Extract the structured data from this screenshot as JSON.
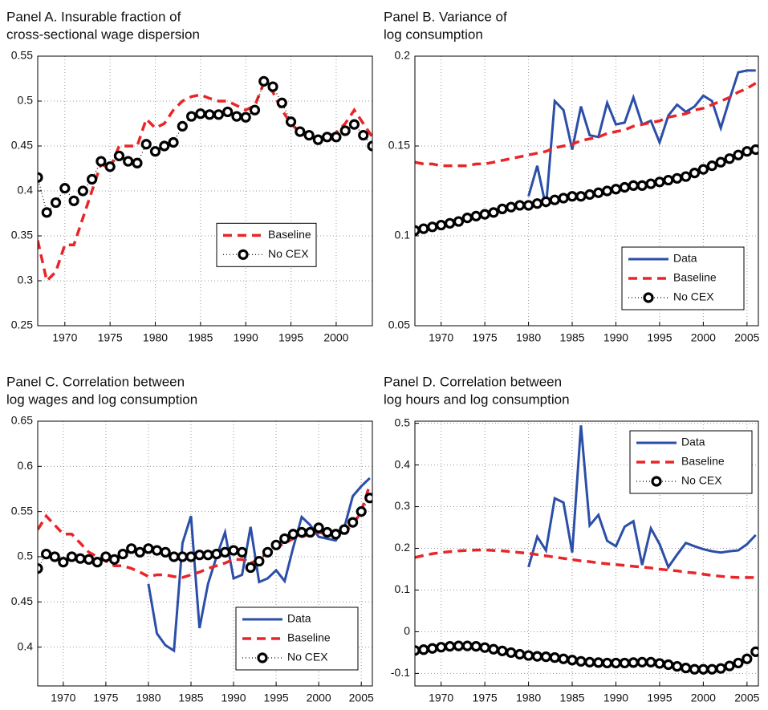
{
  "chart_data": [
    {
      "type": "line",
      "title": [
        "Panel A. Insurable fraction of",
        "cross-sectional wage dispersion"
      ],
      "x": [
        1967,
        1968,
        1969,
        1970,
        1971,
        1972,
        1973,
        1974,
        1975,
        1976,
        1977,
        1978,
        1979,
        1980,
        1981,
        1982,
        1983,
        1984,
        1985,
        1986,
        1987,
        1988,
        1989,
        1990,
        1991,
        1992,
        1993,
        1994,
        1995,
        1996,
        1997,
        1998,
        1999,
        2000,
        2001,
        2002,
        2003,
        2004
      ],
      "xlim": [
        1967,
        2004
      ],
      "xticks": [
        1970,
        1975,
        1980,
        1985,
        1990,
        1995,
        2000
      ],
      "ylim": [
        0.25,
        0.55
      ],
      "yticks": [
        0.25,
        0.3,
        0.35,
        0.4,
        0.45,
        0.5,
        0.55
      ],
      "grid": true,
      "legend": "center right",
      "series": [
        {
          "name": "Baseline",
          "color": "#e8262a",
          "style": "dashed",
          "values": [
            0.345,
            0.3,
            0.31,
            0.34,
            0.34,
            0.37,
            0.4,
            0.43,
            0.425,
            0.45,
            0.45,
            0.45,
            0.48,
            0.47,
            0.475,
            0.49,
            0.5,
            0.505,
            0.507,
            0.503,
            0.5,
            0.5,
            0.495,
            0.49,
            0.495,
            0.52,
            0.51,
            0.49,
            0.475,
            0.465,
            0.46,
            0.46,
            0.46,
            0.465,
            0.475,
            0.49,
            0.475,
            0.46
          ]
        },
        {
          "name": "No CEX",
          "color": "#000000",
          "style": "markers",
          "values": [
            0.415,
            0.376,
            0.387,
            0.403,
            0.389,
            0.4,
            0.413,
            0.433,
            0.427,
            0.439,
            0.433,
            0.431,
            0.452,
            0.444,
            0.45,
            0.454,
            0.472,
            0.483,
            0.486,
            0.485,
            0.485,
            0.488,
            0.483,
            0.482,
            0.49,
            0.522,
            0.516,
            0.498,
            0.477,
            0.466,
            0.462,
            0.457,
            0.46,
            0.46,
            0.467,
            0.474,
            0.462,
            0.45
          ]
        }
      ]
    },
    {
      "type": "line",
      "title": [
        "Panel B. Variance of",
        "log consumption"
      ],
      "x": [
        1967,
        1968,
        1969,
        1970,
        1971,
        1972,
        1973,
        1974,
        1975,
        1976,
        1977,
        1978,
        1979,
        1980,
        1981,
        1982,
        1983,
        1984,
        1985,
        1986,
        1987,
        1988,
        1989,
        1990,
        1991,
        1992,
        1993,
        1994,
        1995,
        1996,
        1997,
        1998,
        1999,
        2000,
        2001,
        2002,
        2003,
        2004,
        2005,
        2006
      ],
      "xlim": [
        1967,
        2006.3
      ],
      "xticks": [
        1970,
        1975,
        1980,
        1985,
        1990,
        1995,
        2000,
        2005
      ],
      "ylim": [
        0.05,
        0.2
      ],
      "yticks": [
        0.05,
        0.1,
        0.15,
        0.2
      ],
      "grid": true,
      "legend": "lower right",
      "series": [
        {
          "name": "Data",
          "color": "#2b4ea8",
          "style": "solid",
          "values": [
            null,
            null,
            null,
            null,
            null,
            null,
            null,
            null,
            null,
            null,
            null,
            null,
            null,
            0.122,
            0.139,
            0.116,
            0.175,
            0.17,
            0.148,
            0.172,
            0.156,
            0.155,
            0.174,
            0.162,
            0.163,
            0.177,
            0.162,
            0.164,
            0.152,
            0.167,
            0.173,
            0.169,
            0.172,
            0.178,
            0.175,
            0.16,
            0.176,
            0.191,
            0.192,
            0.192
          ]
        },
        {
          "name": "Baseline",
          "color": "#e8262a",
          "style": "dashed",
          "values": [
            0.141,
            0.14,
            0.14,
            0.139,
            0.139,
            0.139,
            0.139,
            0.14,
            0.14,
            0.141,
            0.142,
            0.143,
            0.144,
            0.145,
            0.146,
            0.147,
            0.149,
            0.15,
            0.151,
            0.153,
            0.154,
            0.155,
            0.157,
            0.158,
            0.159,
            0.161,
            0.162,
            0.163,
            0.164,
            0.166,
            0.167,
            0.168,
            0.17,
            0.171,
            0.173,
            0.175,
            0.177,
            0.18,
            0.182,
            0.185
          ]
        },
        {
          "name": "No CEX",
          "color": "#000000",
          "style": "markers",
          "values": [
            0.103,
            0.104,
            0.105,
            0.106,
            0.107,
            0.108,
            0.11,
            0.111,
            0.112,
            0.113,
            0.115,
            0.116,
            0.117,
            0.117,
            0.118,
            0.119,
            0.12,
            0.121,
            0.122,
            0.122,
            0.123,
            0.124,
            0.125,
            0.126,
            0.127,
            0.128,
            0.128,
            0.129,
            0.13,
            0.131,
            0.132,
            0.133,
            0.135,
            0.137,
            0.139,
            0.141,
            0.143,
            0.145,
            0.147,
            0.148
          ]
        }
      ]
    },
    {
      "type": "line",
      "title": [
        "Panel C. Correlation between",
        "log wages and log consumption"
      ],
      "x": [
        1967,
        1968,
        1969,
        1970,
        1971,
        1972,
        1973,
        1974,
        1975,
        1976,
        1977,
        1978,
        1979,
        1980,
        1981,
        1982,
        1983,
        1984,
        1985,
        1986,
        1987,
        1988,
        1989,
        1990,
        1991,
        1992,
        1993,
        1994,
        1995,
        1996,
        1997,
        1998,
        1999,
        2000,
        2001,
        2002,
        2003,
        2004,
        2005,
        2006
      ],
      "xlim": [
        1967,
        2006.3
      ],
      "xticks": [
        1970,
        1975,
        1980,
        1985,
        1990,
        1995,
        2000,
        2005
      ],
      "ylim": [
        0.357,
        0.65
      ],
      "yticks": [
        0.4,
        0.45,
        0.5,
        0.55,
        0.6,
        0.65
      ],
      "grid": true,
      "legend": "lower right",
      "series": [
        {
          "name": "Data",
          "color": "#2b4ea8",
          "style": "solid",
          "values": [
            null,
            null,
            null,
            null,
            null,
            null,
            null,
            null,
            null,
            null,
            null,
            null,
            null,
            0.47,
            0.415,
            0.402,
            0.396,
            0.515,
            0.545,
            0.421,
            0.47,
            0.5,
            0.527,
            0.476,
            0.48,
            0.533,
            0.472,
            0.476,
            0.485,
            0.473,
            0.51,
            0.544,
            0.535,
            0.522,
            0.52,
            0.518,
            0.532,
            0.567,
            0.578,
            0.587
          ]
        },
        {
          "name": "Baseline",
          "color": "#e8262a",
          "style": "dashed",
          "values": [
            0.53,
            0.545,
            0.535,
            0.525,
            0.525,
            0.515,
            0.505,
            0.5,
            0.495,
            0.49,
            0.49,
            0.487,
            0.483,
            0.478,
            0.48,
            0.48,
            0.478,
            0.477,
            0.48,
            0.483,
            0.487,
            0.49,
            0.493,
            0.497,
            0.497,
            0.493,
            0.497,
            0.505,
            0.51,
            0.515,
            0.52,
            0.522,
            0.525,
            0.527,
            0.525,
            0.523,
            0.528,
            0.535,
            0.55,
            0.58
          ]
        },
        {
          "name": "No CEX",
          "color": "#000000",
          "style": "markers",
          "values": [
            0.487,
            0.503,
            0.5,
            0.494,
            0.5,
            0.498,
            0.497,
            0.494,
            0.5,
            0.497,
            0.503,
            0.509,
            0.505,
            0.509,
            0.507,
            0.505,
            0.5,
            0.5,
            0.5,
            0.502,
            0.502,
            0.503,
            0.505,
            0.507,
            0.505,
            0.488,
            0.495,
            0.505,
            0.513,
            0.52,
            0.525,
            0.527,
            0.527,
            0.532,
            0.527,
            0.525,
            0.53,
            0.538,
            0.55,
            0.565
          ]
        }
      ]
    },
    {
      "type": "line",
      "title": [
        "Panel D. Correlation between",
        "log hours and log consumption"
      ],
      "x": [
        1967,
        1968,
        1969,
        1970,
        1971,
        1972,
        1973,
        1974,
        1975,
        1976,
        1977,
        1978,
        1979,
        1980,
        1981,
        1982,
        1983,
        1984,
        1985,
        1986,
        1987,
        1988,
        1989,
        1990,
        1991,
        1992,
        1993,
        1994,
        1995,
        1996,
        1997,
        1998,
        1999,
        2000,
        2001,
        2002,
        2003,
        2004,
        2005,
        2006
      ],
      "xlim": [
        1967,
        2006.3
      ],
      "xticks": [
        1970,
        1975,
        1980,
        1985,
        1990,
        1995,
        2000,
        2005
      ],
      "ylim": [
        -0.13,
        0.505
      ],
      "yticks": [
        -0.1,
        0,
        0.1,
        0.2,
        0.3,
        0.4,
        0.5
      ],
      "grid": true,
      "legend": "upper right",
      "series": [
        {
          "name": "Data",
          "color": "#2b4ea8",
          "style": "solid",
          "values": [
            null,
            null,
            null,
            null,
            null,
            null,
            null,
            null,
            null,
            null,
            null,
            null,
            null,
            0.155,
            0.228,
            0.195,
            0.32,
            0.31,
            0.19,
            0.495,
            0.255,
            0.28,
            0.218,
            0.205,
            0.252,
            0.265,
            0.16,
            0.248,
            0.21,
            0.155,
            0.185,
            0.213,
            0.205,
            0.198,
            0.193,
            0.19,
            0.193,
            0.195,
            0.21,
            0.232
          ]
        },
        {
          "name": "Baseline",
          "color": "#e8262a",
          "style": "dashed",
          "values": [
            0.178,
            0.183,
            0.187,
            0.19,
            0.192,
            0.194,
            0.195,
            0.196,
            0.196,
            0.195,
            0.194,
            0.192,
            0.19,
            0.188,
            0.185,
            0.182,
            0.179,
            0.176,
            0.173,
            0.17,
            0.168,
            0.165,
            0.163,
            0.161,
            0.159,
            0.157,
            0.155,
            0.153,
            0.15,
            0.148,
            0.146,
            0.143,
            0.141,
            0.138,
            0.135,
            0.133,
            0.131,
            0.13,
            0.13,
            0.13
          ]
        },
        {
          "name": "No CEX",
          "color": "#000000",
          "style": "markers",
          "values": [
            -0.045,
            -0.043,
            -0.04,
            -0.037,
            -0.035,
            -0.034,
            -0.034,
            -0.035,
            -0.038,
            -0.042,
            -0.046,
            -0.05,
            -0.054,
            -0.057,
            -0.059,
            -0.06,
            -0.062,
            -0.065,
            -0.068,
            -0.071,
            -0.073,
            -0.074,
            -0.075,
            -0.075,
            -0.075,
            -0.074,
            -0.073,
            -0.073,
            -0.076,
            -0.079,
            -0.083,
            -0.087,
            -0.09,
            -0.09,
            -0.09,
            -0.088,
            -0.082,
            -0.075,
            -0.065,
            -0.048
          ]
        }
      ]
    }
  ]
}
